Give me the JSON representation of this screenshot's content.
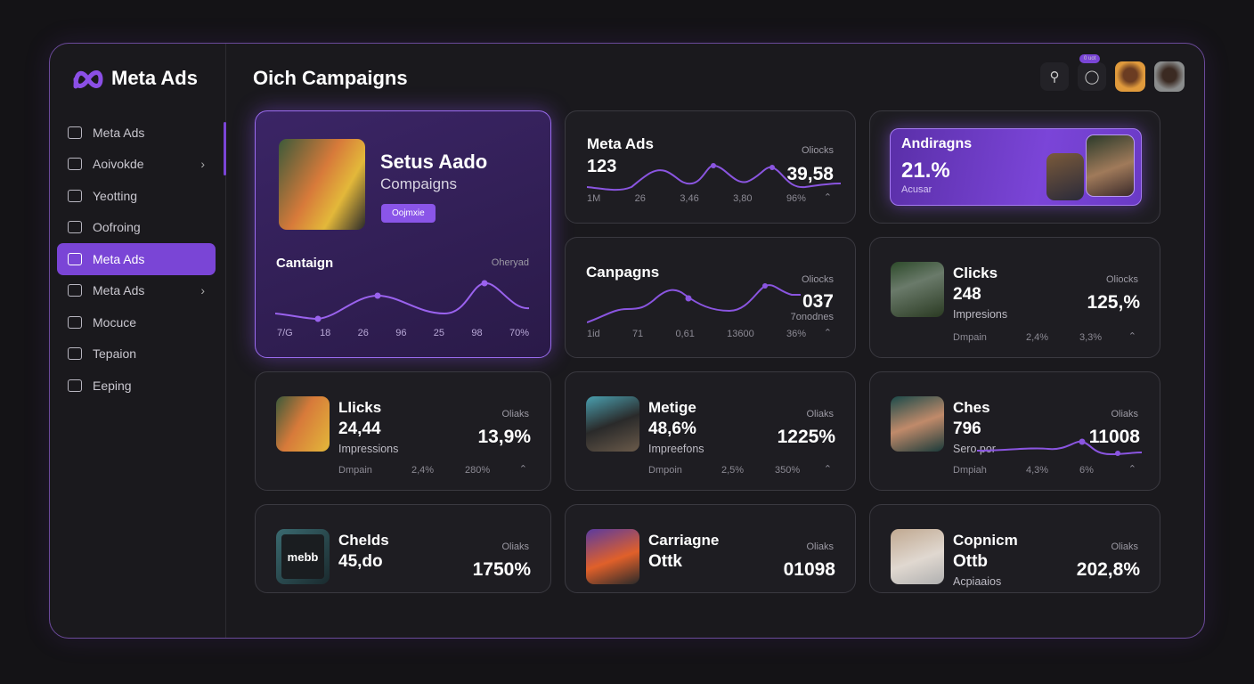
{
  "brand": {
    "name": "Meta Ads"
  },
  "header": {
    "title": "Oich Campaigns",
    "badge": "0 uot",
    "search_icon": "search-icon",
    "chat_icon": "chat-icon"
  },
  "sidebar": {
    "items": [
      {
        "label": "Meta Ads",
        "icon": "ads-icon"
      },
      {
        "label": "Aoivokde",
        "icon": "calendar-icon",
        "chevron": true
      },
      {
        "label": "Yeotting",
        "icon": "target-icon"
      },
      {
        "label": "Oofroing",
        "icon": "layout-icon"
      },
      {
        "label": "Meta Ads",
        "icon": "hand-icon",
        "active": true
      },
      {
        "label": "Meta Ads",
        "icon": "chart-icon",
        "chevron": true
      },
      {
        "label": "Mocuce",
        "icon": "module-icon"
      },
      {
        "label": "Tepaion",
        "icon": "grid-icon"
      },
      {
        "label": "Eeping",
        "icon": "cloud-icon"
      }
    ]
  },
  "hero": {
    "title": "Setus Aado",
    "subtitle": "Compaigns",
    "button": "Oojmxie",
    "chart_title": "Cantaign",
    "chart_right": "Oheryad",
    "ticks": [
      "7/G",
      "18",
      "26",
      "96",
      "25",
      "98",
      "70%"
    ]
  },
  "row1a": {
    "title": "Meta Ads",
    "value": "123",
    "label": "Oliocks",
    "metric": "39,58",
    "ticks": [
      "1M",
      "26",
      "3,46",
      "3,80",
      "96%"
    ]
  },
  "row1b": {
    "title": "Andiragns",
    "value": "21.%",
    "sub": "Acusar"
  },
  "row2a": {
    "title": "Canpagns",
    "label": "Oliocks",
    "metric": "037",
    "sub": "7onodnes",
    "ticks": [
      "1id",
      "71",
      "0,61",
      "13600",
      "36%"
    ]
  },
  "cards": [
    {
      "title": "Clicks",
      "value": "248",
      "sub": "Impresions",
      "label": "Oliocks",
      "metric": "125,%",
      "foot": [
        "Dmpain",
        "2,4%",
        "3,3%"
      ]
    },
    {
      "title": "Llicks",
      "value": "24,44",
      "sub": "Impressions",
      "label": "Oliaks",
      "metric": "13,9%",
      "foot": [
        "Dmpain",
        "2,4%",
        "280%"
      ]
    },
    {
      "title": "Metige",
      "value": "48,6%",
      "sub": "Impreefons",
      "label": "Oliaks",
      "metric": "1225%",
      "foot": [
        "Dmpoin",
        "2,5%",
        "350%"
      ]
    },
    {
      "title": "Ches",
      "value": "796",
      "sub": "Sero por",
      "label": "Oliaks",
      "metric": "11008",
      "foot": [
        "Dmpiah",
        "4,3%",
        "6%"
      ]
    },
    {
      "title": "Chelds",
      "value": "45,do",
      "sub": "",
      "label": "Oliaks",
      "metric": "1750%",
      "foot": []
    },
    {
      "title": "Carriagne",
      "value": "Ottk",
      "sub": "",
      "label": "Oliaks",
      "metric": "01098",
      "foot": []
    },
    {
      "title": "Copnicm",
      "value": "Ottb",
      "sub": "Acpiaaios",
      "label": "Oliaks",
      "metric": "202,8%",
      "foot": []
    }
  ],
  "thumb_text": "mebb",
  "colors": {
    "accent": "#7a45d6",
    "bg": "#1a191d"
  }
}
